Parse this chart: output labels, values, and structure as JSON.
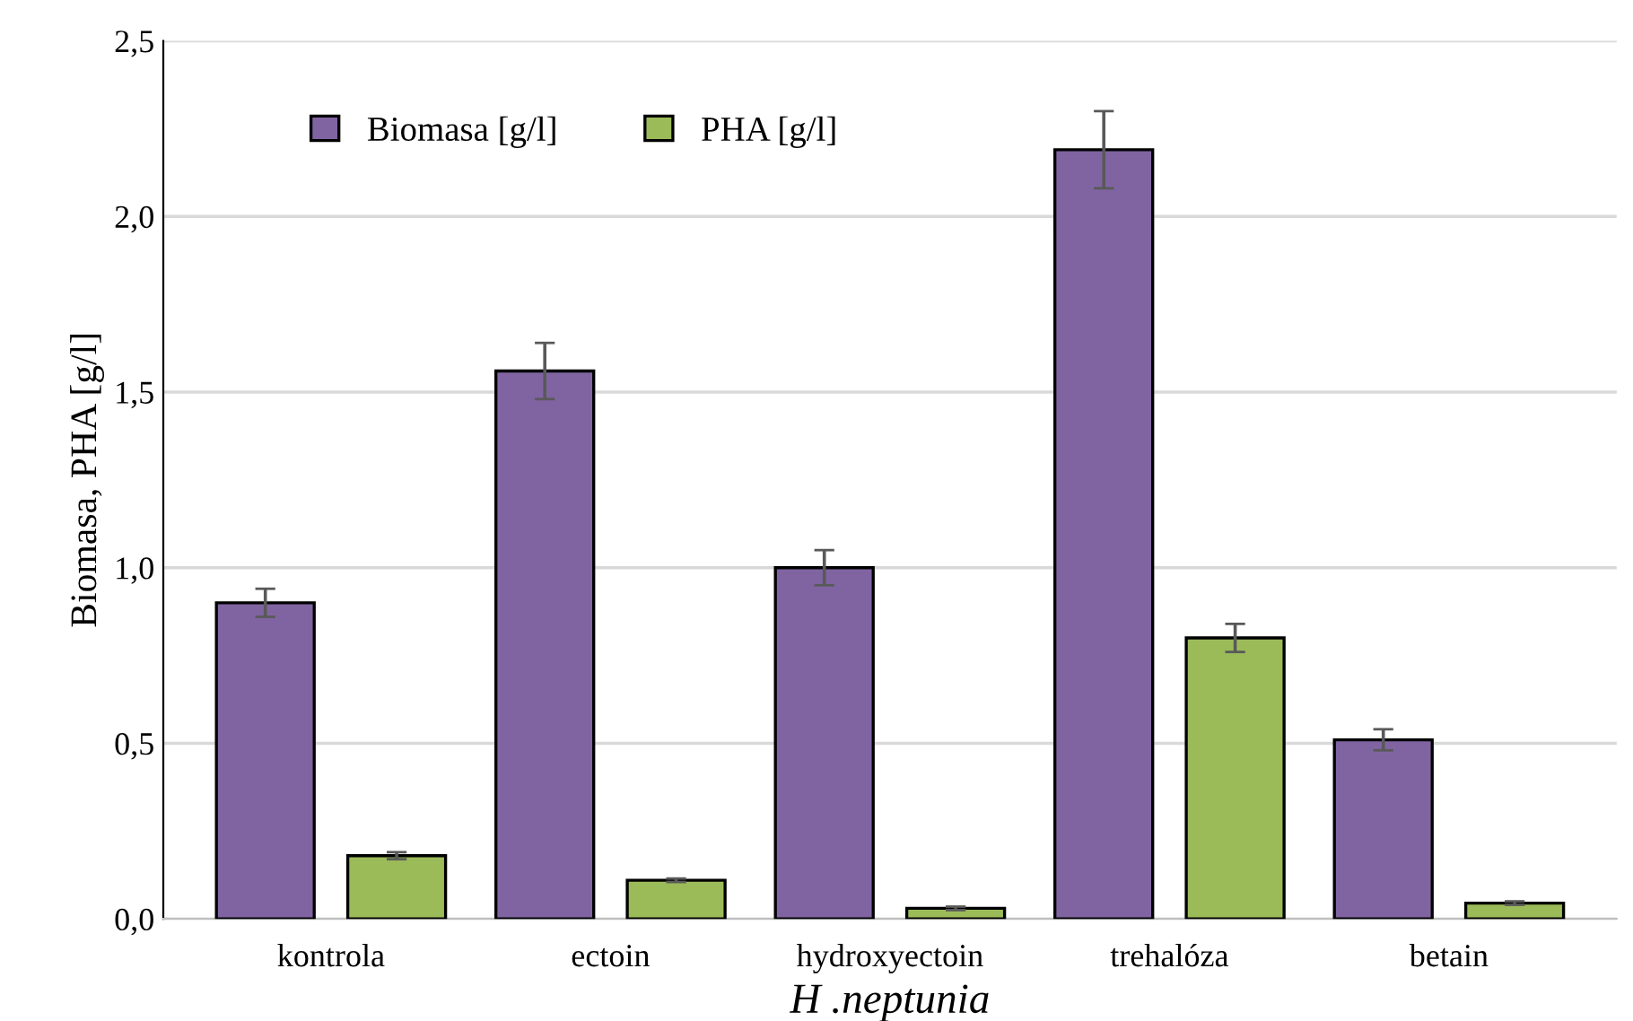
{
  "chart_data": {
    "type": "bar",
    "xlabel": "H .neptunia",
    "ylabel": "Biomasa, PHA [g/l]",
    "categories": [
      "kontrola",
      "ectoin",
      "hydroxyectoin",
      "trehalóza",
      "betain"
    ],
    "series": [
      {
        "name": "Biomasa [g/l]",
        "color": "#8064a2",
        "values": [
          0.9,
          1.56,
          1.0,
          2.19,
          0.51
        ],
        "errors": [
          0.04,
          0.08,
          0.05,
          0.11,
          0.03
        ]
      },
      {
        "name": "PHA [g/l]",
        "color": "#9bbb59",
        "values": [
          0.18,
          0.11,
          0.03,
          0.8,
          0.045
        ],
        "errors": [
          0.01,
          0.005,
          0.005,
          0.04,
          0.005
        ]
      }
    ],
    "ylim": [
      0,
      2.5
    ],
    "yticks": [
      {
        "value": 0,
        "label": "0,0"
      },
      {
        "value": 0.5,
        "label": "0,5"
      },
      {
        "value": 1.0,
        "label": "1,0"
      },
      {
        "value": 1.5,
        "label": "1,5"
      },
      {
        "value": 2.0,
        "label": "2,0"
      },
      {
        "value": 2.5,
        "label": "2,5"
      }
    ],
    "grid": "y",
    "legend": "top left"
  }
}
